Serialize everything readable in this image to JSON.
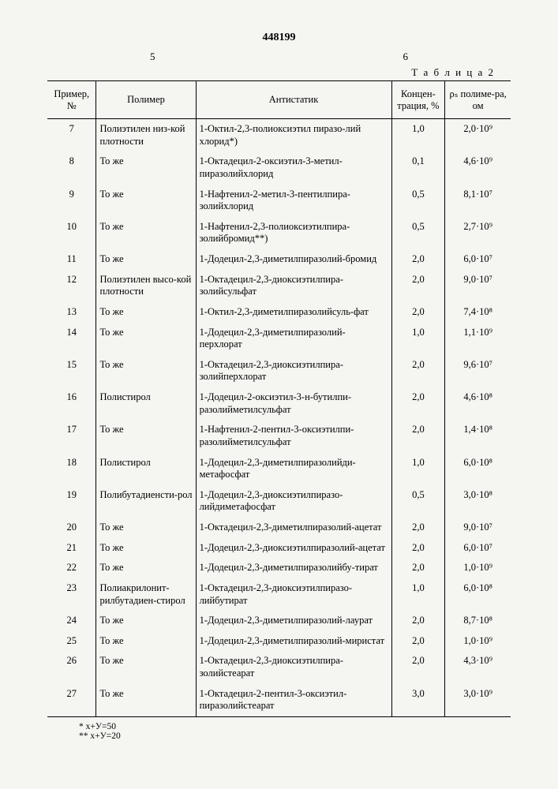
{
  "doc_number": "448199",
  "col_left": "5",
  "col_right": "6",
  "table_label": "Т а б л и ц а  2",
  "columns": {
    "c1": "Пример, №",
    "c2": "Полимер",
    "c3": "Антистатик",
    "c4": "Концен-трация, %",
    "c5": "ρₛ полиме-ра, ом"
  },
  "rows": [
    {
      "n": "7",
      "poly": "Полиэтилен низ-кой плотности",
      "anti": "1-Октил-2,3-полиоксиэтил пиразо-лий хлорид*)",
      "conc": "1,0",
      "rho": "2,0·10⁹"
    },
    {
      "n": "8",
      "poly": "То же",
      "anti": "1-Октадецил-2-оксиэтил-3-метил-пиразолийхлорид",
      "conc": "0,1",
      "rho": "4,6·10⁹"
    },
    {
      "n": "9",
      "poly": "То же",
      "anti": "1-Нафтенил-2-метил-3-пентилпира-золийхлорид",
      "conc": "0,5",
      "rho": "8,1·10⁷"
    },
    {
      "n": "10",
      "poly": "То же",
      "anti": "1-Нафтенил-2,3-полиоксиэтилпира-золийбромид**)",
      "conc": "0,5",
      "rho": "2,7·10⁹"
    },
    {
      "n": "11",
      "poly": "То же",
      "anti": "1-Додецил-2,3-диметилпиразолий-бромид",
      "conc": "2,0",
      "rho": "6,0·10⁷"
    },
    {
      "n": "12",
      "poly": "Полиэтилен высо-кой плотности",
      "anti": "1-Октадецил-2,3-диоксиэтилпира-золийсульфат",
      "conc": "2,0",
      "rho": "9,0·10⁷"
    },
    {
      "n": "13",
      "poly": "То же",
      "anti": "1-Октил-2,3-диметилпиразолийсуль-фат",
      "conc": "2,0",
      "rho": "7,4·10⁸"
    },
    {
      "n": "14",
      "poly": "То же",
      "anti": "1-Додецил-2,3-диметилпиразолий-перхлорат",
      "conc": "1,0",
      "rho": "1,1·10⁹"
    },
    {
      "n": "15",
      "poly": "То же",
      "anti": "1-Октадецил-2,3-диоксиэтилпира-золийперхлорат",
      "conc": "2,0",
      "rho": "9,6·10⁷"
    },
    {
      "n": "16",
      "poly": "Полистирол",
      "anti": "1-Додецил-2-оксиэтил-3-н-бутилпи-разолийметилсульфат",
      "conc": "2,0",
      "rho": "4,6·10⁸"
    },
    {
      "n": "17",
      "poly": "То же",
      "anti": "1-Нафтенил-2-пентил-3-оксиэтилпи-разолийметилсульфат",
      "conc": "2,0",
      "rho": "1,4·10⁸"
    },
    {
      "n": "18",
      "poly": "Полистирол",
      "anti": "1-Додецил-2,3-диметилпиразолийди-метафосфат",
      "conc": "1,0",
      "rho": "6,0·10⁸"
    },
    {
      "n": "19",
      "poly": "Полибутадиенсти-рол",
      "anti": "1-Додецил-2,3-диоксиэтилпиразо-лийдиметафосфат",
      "conc": "0,5",
      "rho": "3,0·10⁸"
    },
    {
      "n": "20",
      "poly": "То же",
      "anti": "1-Октадецил-2,3-диметилпиразолий-ацетат",
      "conc": "2,0",
      "rho": "9,0·10⁷"
    },
    {
      "n": "21",
      "poly": "То же",
      "anti": "1-Додецил-2,3-диоксиэтилпиразолий-ацетат",
      "conc": "2,0",
      "rho": "6,0·10⁷"
    },
    {
      "n": "22",
      "poly": "То же",
      "anti": "1-Додецил-2,3-диметилпиразолийбу-тират",
      "conc": "2,0",
      "rho": "1,0·10⁹"
    },
    {
      "n": "23",
      "poly": "Полиакрилонит-рилбутадиен-стирол",
      "anti": "1-Октадецил-2,3-диоксиэтилпиразо-лийбутират",
      "conc": "1,0",
      "rho": "6,0·10⁸"
    },
    {
      "n": "24",
      "poly": "То же",
      "anti": "1-Додецил-2,3-диметилпиразолий-лаурат",
      "conc": "2,0",
      "rho": "8,7·10⁸"
    },
    {
      "n": "25",
      "poly": "То же",
      "anti": "1-Додецил-2,3-диметилпиразолий-миристат",
      "conc": "2,0",
      "rho": "1,0·10⁹"
    },
    {
      "n": "26",
      "poly": "То же",
      "anti": "1-Октадецил-2,3-диоксиэтилпира-золийстеарат",
      "conc": "2,0",
      "rho": "4,3·10⁹"
    },
    {
      "n": "27",
      "poly": "То же",
      "anti": "1-Октадецил-2-пентил-3-оксиэтил-пиразолийстеарат",
      "conc": "3,0",
      "rho": "3,0·10⁹"
    }
  ],
  "footnotes": {
    "f1": "*  x+У=50",
    "f2": "** x+У=20"
  }
}
